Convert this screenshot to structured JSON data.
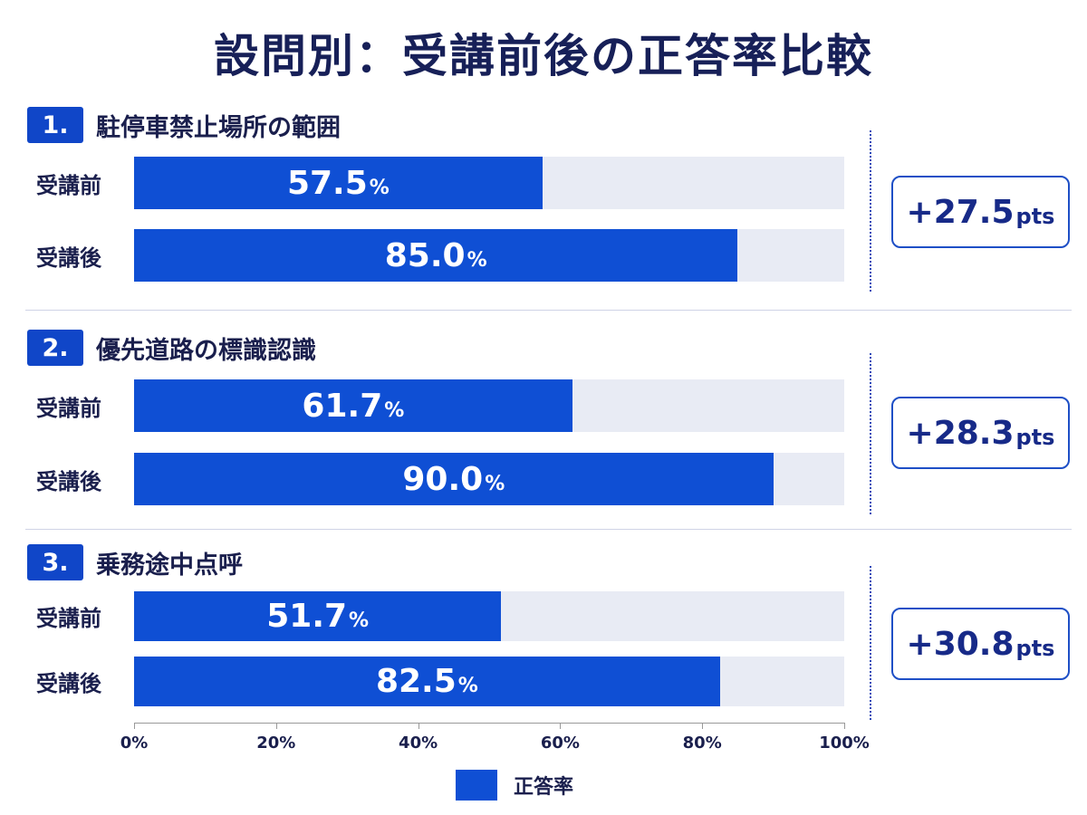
{
  "title": "設問別：受講前後の正答率比較",
  "chart_data": {
    "type": "bar",
    "orientation": "horizontal",
    "title": "設問別：受講前後の正答率比較",
    "xlim": [
      0,
      100
    ],
    "x_ticks": [
      "0%",
      "20%",
      "40%",
      "60%",
      "80%",
      "100%"
    ],
    "legend": [
      {
        "label": "正答率",
        "color": "#0f4fd4"
      }
    ],
    "legend_position": "bottom-center",
    "grid": false,
    "categories": [
      "受講前",
      "受講後"
    ],
    "questions": [
      {
        "number": "1.",
        "title": "駐停車禁止場所の範囲",
        "values": [
          57.5,
          85.0
        ],
        "labels": [
          "57.5",
          "85.0"
        ],
        "delta_num": "+27.5",
        "delta_unit": "pts"
      },
      {
        "number": "2.",
        "title": "優先道路の標識認識",
        "values": [
          61.7,
          90.0
        ],
        "labels": [
          "61.7",
          "90.0"
        ],
        "delta_num": "+28.3",
        "delta_unit": "pts"
      },
      {
        "number": "3.",
        "title": "乗務途中点呼",
        "values": [
          51.7,
          82.5
        ],
        "labels": [
          "51.7",
          "82.5"
        ],
        "delta_num": "+30.8",
        "delta_unit": "pts"
      }
    ],
    "percent_sign": "%"
  }
}
